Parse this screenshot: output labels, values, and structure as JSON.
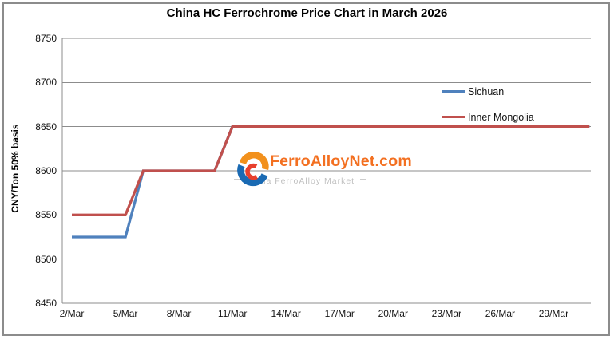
{
  "window": {
    "background": "#ffffff",
    "border_color": "#8c8c8c"
  },
  "chart_data": {
    "type": "line",
    "title": "China HC Ferrochrome Price Chart in March 2026",
    "xlabel": "",
    "ylabel": "CNY/Ton 50% basis",
    "x": [
      2,
      3,
      4,
      5,
      6,
      7,
      8,
      9,
      10,
      11,
      12,
      13,
      14,
      15,
      16,
      17,
      18,
      19,
      20,
      21,
      22,
      23,
      24,
      25,
      26,
      27,
      28,
      29,
      30,
      31
    ],
    "x_tick_days": [
      2,
      5,
      8,
      11,
      14,
      17,
      20,
      23,
      26,
      29
    ],
    "x_tick_labels": [
      "2/Mar",
      "5/Mar",
      "8/Mar",
      "11/Mar",
      "14/Mar",
      "17/Mar",
      "20/Mar",
      "23/Mar",
      "26/Mar",
      "29/Mar"
    ],
    "y_ticks": [
      8450,
      8500,
      8550,
      8600,
      8650,
      8700,
      8750
    ],
    "y_tick_labels": [
      "8450",
      "8500",
      "8550",
      "8600",
      "8650",
      "8700",
      "8750"
    ],
    "ylim": [
      8450,
      8750
    ],
    "grid": true,
    "grid_color": "#8c8c8c",
    "legend_position": "inside-upper-right",
    "series": [
      {
        "name": "Sichuan",
        "color": "#4f81bd",
        "values": [
          8525,
          8525,
          8525,
          8525,
          8600,
          8600,
          8600,
          8600,
          8600,
          8650,
          8650,
          8650,
          8650,
          8650,
          8650,
          8650,
          8650,
          8650,
          8650,
          8650,
          8650,
          8650,
          8650,
          8650,
          8650,
          8650,
          8650,
          8650,
          8650,
          8650
        ]
      },
      {
        "name": "Inner Mongolia",
        "color": "#c0504d",
        "values": [
          8550,
          8550,
          8550,
          8550,
          8600,
          8600,
          8600,
          8600,
          8600,
          8650,
          8650,
          8650,
          8650,
          8650,
          8650,
          8650,
          8650,
          8650,
          8650,
          8650,
          8650,
          8650,
          8650,
          8650,
          8650,
          8650,
          8650,
          8650,
          8650,
          8650
        ]
      }
    ]
  },
  "watermark": {
    "brand": "FerroAlloyNet.com",
    "tagline": "China FerroAlloy Market",
    "brand_color": "#f37021",
    "tagline_color": "#c0c0c0",
    "icon_orange": "#f2911d",
    "icon_blue": "#1a6ab3",
    "icon_red": "#e8402d"
  }
}
